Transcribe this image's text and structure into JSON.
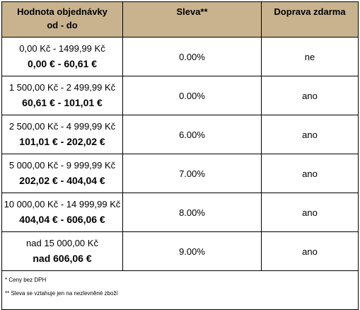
{
  "table": {
    "header": {
      "range": [
        "Hodnota objednávky",
        "od - do"
      ],
      "discount": "Sleva**",
      "shipping": "Doprava zdarma"
    },
    "rows": [
      {
        "czk": "0,00 Kč - 1499,99 Kč",
        "eur": "0,00 € - 60,61 €",
        "discount": "0.00%",
        "shipping": "ne"
      },
      {
        "czk": "1 500,00 Kč - 2 499,99 Kč",
        "eur": "60,61 € - 101,01 €",
        "discount": "0.00%",
        "shipping": "ano"
      },
      {
        "czk": "2 500,00 Kč - 4 999,99 Kč",
        "eur": "101,01 € - 202,02 €",
        "discount": "6.00%",
        "shipping": "ano"
      },
      {
        "czk": "5 000,00 Kč - 9 999,99 Kč",
        "eur": "202,02 € - 404,04 €",
        "discount": "7.00%",
        "shipping": "ano"
      },
      {
        "czk": "10 000,00 Kč - 14 999,99 Kč",
        "eur": "404,04 € - 606,06 €",
        "discount": "8.00%",
        "shipping": "ano"
      },
      {
        "czk": "nad 15 000,00 Kč",
        "eur": "nad 606,06 €",
        "discount": "9.00%",
        "shipping": "ano"
      }
    ],
    "footnotes": [
      "* Ceny bez DPH",
      "** Sleva se vztahuje jen na nezlevněné zboží"
    ]
  }
}
